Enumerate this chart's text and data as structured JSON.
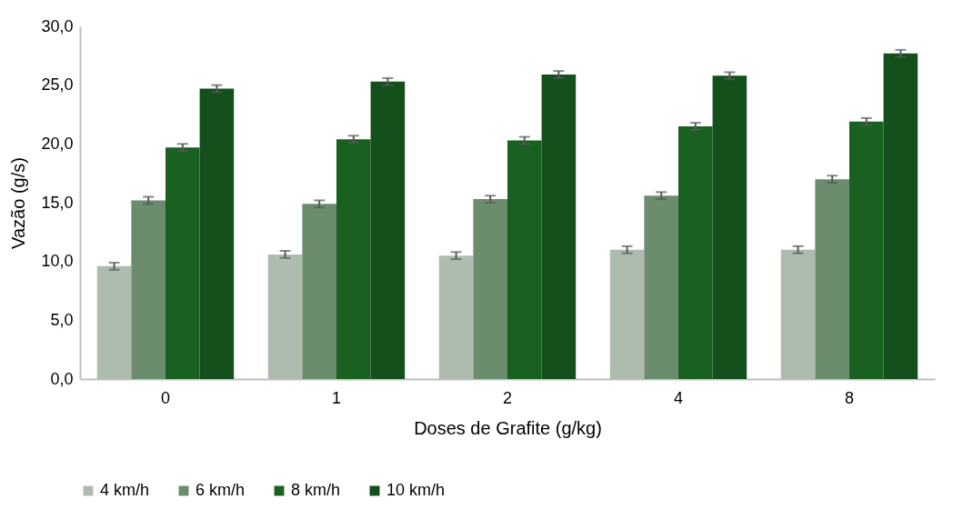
{
  "chart_data": {
    "type": "bar",
    "xlabel": "Doses de Grafite (g/kg)",
    "ylabel": "Vazão (g/s)",
    "categories": [
      "0",
      "1",
      "2",
      "4",
      "8"
    ],
    "series": [
      {
        "name": "4 km/h",
        "color": "#adbcae",
        "values": [
          9.6,
          10.6,
          10.5,
          11.0,
          11.0
        ],
        "errors": [
          0.3,
          0.3,
          0.3,
          0.3,
          0.3
        ]
      },
      {
        "name": "6 km/h",
        "color": "#6b8d6d",
        "values": [
          15.2,
          14.9,
          15.3,
          15.6,
          17.0
        ],
        "errors": [
          0.3,
          0.3,
          0.3,
          0.3,
          0.3
        ]
      },
      {
        "name": "8 km/h",
        "color": "#1a6121",
        "values": [
          19.7,
          20.4,
          20.3,
          21.5,
          21.9
        ],
        "errors": [
          0.3,
          0.3,
          0.3,
          0.3,
          0.3
        ]
      },
      {
        "name": "10 km/h",
        "color": "#13501c",
        "values": [
          24.7,
          25.3,
          25.9,
          25.8,
          27.7
        ],
        "errors": [
          0.3,
          0.3,
          0.3,
          0.3,
          0.3
        ]
      }
    ],
    "ylim": [
      0,
      30
    ],
    "yticks": [
      {
        "value": 0,
        "label": "0,0"
      },
      {
        "value": 5,
        "label": "5,0"
      },
      {
        "value": 10,
        "label": "10,0"
      },
      {
        "value": 15,
        "label": "15,0"
      },
      {
        "value": 20,
        "label": "20,0"
      },
      {
        "value": 25,
        "label": "25,0"
      },
      {
        "value": 30,
        "label": "30,0"
      }
    ],
    "grid": false,
    "legend": "bottom"
  }
}
